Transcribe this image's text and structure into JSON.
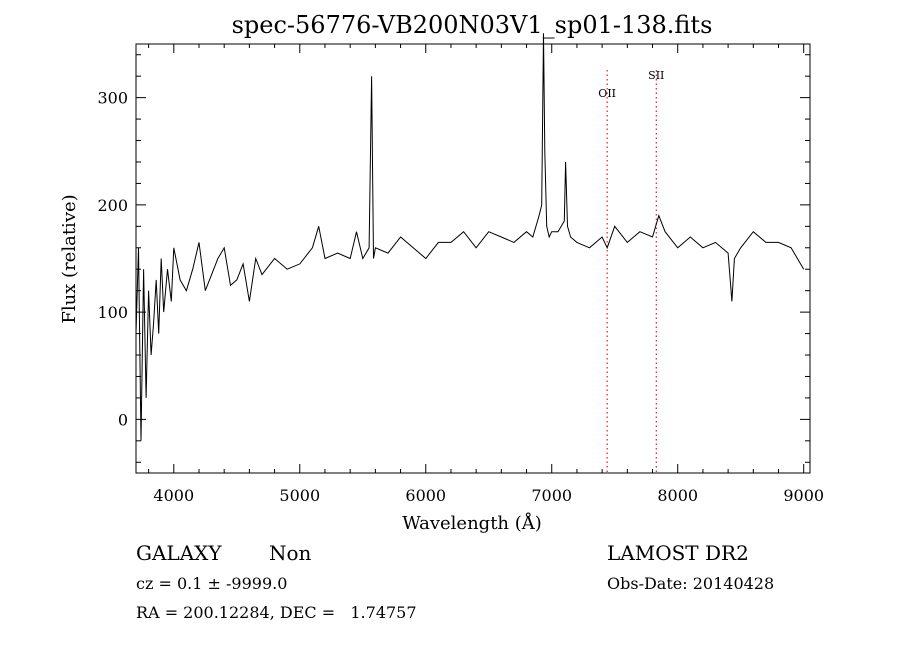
{
  "footer": {
    "object_class": "GALAXY",
    "subclass": "Non",
    "survey": "LAMOST DR2",
    "cz_text": "cz = 0.1 ± -9999.0",
    "obs_date": "Obs-Date: 20140428",
    "coords": "RA = 200.12284, DEC =   1.74757"
  },
  "chart_data": {
    "type": "line",
    "title": "spec-56776-VB200N03V1_sp01-138.fits",
    "xlabel": "Wavelength (Å)",
    "ylabel": "Flux (relative)",
    "xlim": [
      3700,
      9050
    ],
    "ylim": [
      -50,
      350
    ],
    "xticks": [
      4000,
      5000,
      6000,
      7000,
      8000,
      9000
    ],
    "yticks": [
      0,
      100,
      200,
      300
    ],
    "line_color": "#000000",
    "marker_color": "#e0201c",
    "line_markers": [
      {
        "label": "OII",
        "x": 7440
      },
      {
        "label": "SII",
        "x": 7830
      }
    ],
    "series": [
      {
        "x": [
          3700,
          3720,
          3740,
          3760,
          3780,
          3800,
          3820,
          3840,
          3860,
          3880,
          3900,
          3920,
          3950,
          3980,
          4000,
          4050,
          4100,
          4150,
          4200,
          4250,
          4300,
          4350,
          4400,
          4450,
          4500,
          4550,
          4600,
          4650,
          4700,
          4800,
          4900,
          5000,
          5100,
          5150,
          5200,
          5300,
          5400,
          5450,
          5500,
          5550,
          5570,
          5585,
          5600,
          5700,
          5800,
          5900,
          6000,
          6100,
          6200,
          6300,
          6400,
          6500,
          6600,
          6700,
          6800,
          6850,
          6900,
          6920,
          6935,
          6945,
          6960,
          6980,
          7000,
          7050,
          7100,
          7110,
          7125,
          7150,
          7200,
          7300,
          7400,
          7440,
          7500,
          7600,
          7700,
          7800,
          7850,
          7900,
          8000,
          8100,
          8200,
          8300,
          8400,
          8430,
          8450,
          8500,
          8600,
          8700,
          8800,
          8900,
          8950,
          9000
        ],
        "y": [
          80,
          160,
          -20,
          140,
          20,
          120,
          60,
          90,
          130,
          80,
          150,
          100,
          140,
          110,
          160,
          130,
          120,
          140,
          165,
          120,
          135,
          150,
          160,
          125,
          130,
          145,
          110,
          150,
          135,
          150,
          140,
          145,
          160,
          180,
          150,
          155,
          150,
          175,
          150,
          160,
          320,
          150,
          160,
          155,
          170,
          160,
          150,
          165,
          165,
          175,
          160,
          175,
          170,
          165,
          175,
          170,
          190,
          200,
          360,
          250,
          180,
          170,
          175,
          175,
          185,
          240,
          180,
          170,
          165,
          160,
          170,
          160,
          180,
          165,
          175,
          170,
          190,
          175,
          160,
          170,
          160,
          165,
          155,
          110,
          150,
          160,
          175,
          165,
          165,
          160,
          150,
          140
        ]
      }
    ]
  }
}
